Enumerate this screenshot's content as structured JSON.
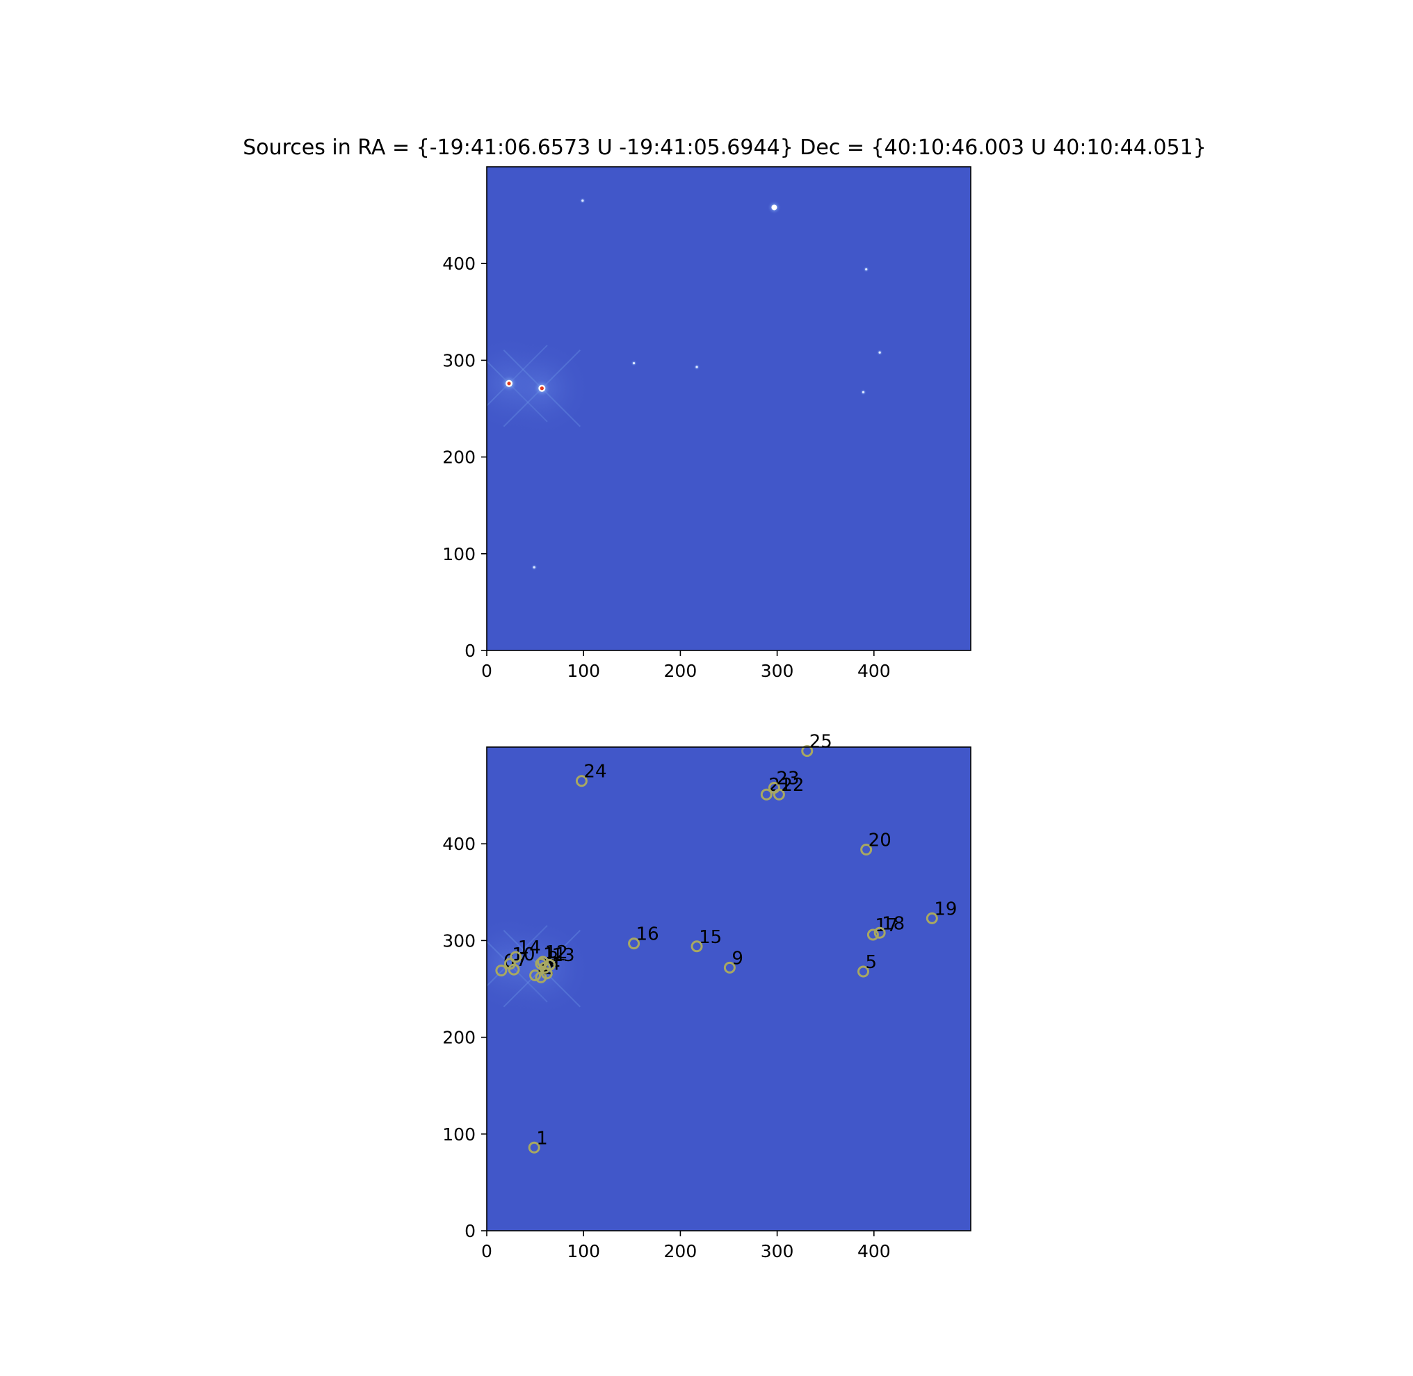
{
  "figure": {
    "title": "Sources in RA = {-19:41:06.6573 U -19:41:05.6944} Dec = {40:10:46.003 U 40:10:44.051}"
  },
  "colors": {
    "background": "#4157c9",
    "source_marker": "#a8a862",
    "star_core": "#ffffff",
    "star_hot": "#e03a1e",
    "star_halo": "#6f9be8"
  },
  "chart_data": [
    {
      "type": "heatmap",
      "title": "",
      "colormap": "coolwarm",
      "xlim": [
        0,
        500
      ],
      "ylim": [
        0,
        500
      ],
      "xticks": [
        0,
        100,
        200,
        300,
        400
      ],
      "yticks": [
        0,
        100,
        200,
        300,
        400
      ],
      "grid": false,
      "bright_sources": [
        {
          "x": 23,
          "y": 276,
          "peak": "saturated"
        },
        {
          "x": 57,
          "y": 271,
          "peak": "saturated"
        },
        {
          "x": 297,
          "y": 458,
          "peak": "bright"
        },
        {
          "x": 392,
          "y": 394,
          "peak": "faint"
        },
        {
          "x": 389,
          "y": 267,
          "peak": "faint"
        },
        {
          "x": 406,
          "y": 308,
          "peak": "faint"
        },
        {
          "x": 152,
          "y": 297,
          "peak": "faint"
        },
        {
          "x": 217,
          "y": 293,
          "peak": "faint"
        },
        {
          "x": 99,
          "y": 465,
          "peak": "faint"
        },
        {
          "x": 49,
          "y": 86,
          "peak": "faint"
        }
      ]
    },
    {
      "type": "scatter",
      "title": "",
      "colormap": "coolwarm",
      "xlim": [
        0,
        500
      ],
      "ylim": [
        0,
        500
      ],
      "xticks": [
        0,
        100,
        200,
        300,
        400
      ],
      "yticks": [
        0,
        100,
        200,
        300,
        400
      ],
      "grid": false,
      "sources": [
        {
          "id": "1",
          "x": 49,
          "y": 86
        },
        {
          "id": "2",
          "x": 56,
          "y": 262
        },
        {
          "id": "3",
          "x": 50,
          "y": 264
        },
        {
          "id": "4",
          "x": 62,
          "y": 266
        },
        {
          "id": "5",
          "x": 389,
          "y": 268
        },
        {
          "id": "6",
          "x": 15,
          "y": 269
        },
        {
          "id": "7",
          "x": 28,
          "y": 270
        },
        {
          "id": "8",
          "x": 60,
          "y": 272
        },
        {
          "id": "9",
          "x": 251,
          "y": 272
        },
        {
          "id": "10",
          "x": 24,
          "y": 276
        },
        {
          "id": "11",
          "x": 56,
          "y": 276
        },
        {
          "id": "12",
          "x": 58,
          "y": 278
        },
        {
          "id": "13",
          "x": 65,
          "y": 275
        },
        {
          "id": "14",
          "x": 30,
          "y": 283
        },
        {
          "id": "15",
          "x": 217,
          "y": 294
        },
        {
          "id": "16",
          "x": 152,
          "y": 297
        },
        {
          "id": "17",
          "x": 399,
          "y": 306
        },
        {
          "id": "18",
          "x": 406,
          "y": 308
        },
        {
          "id": "19",
          "x": 460,
          "y": 323
        },
        {
          "id": "20",
          "x": 392,
          "y": 394
        },
        {
          "id": "21",
          "x": 289,
          "y": 451
        },
        {
          "id": "22",
          "x": 302,
          "y": 451
        },
        {
          "id": "23",
          "x": 297,
          "y": 458
        },
        {
          "id": "24",
          "x": 98,
          "y": 465
        },
        {
          "id": "25",
          "x": 331,
          "y": 496
        }
      ]
    }
  ]
}
